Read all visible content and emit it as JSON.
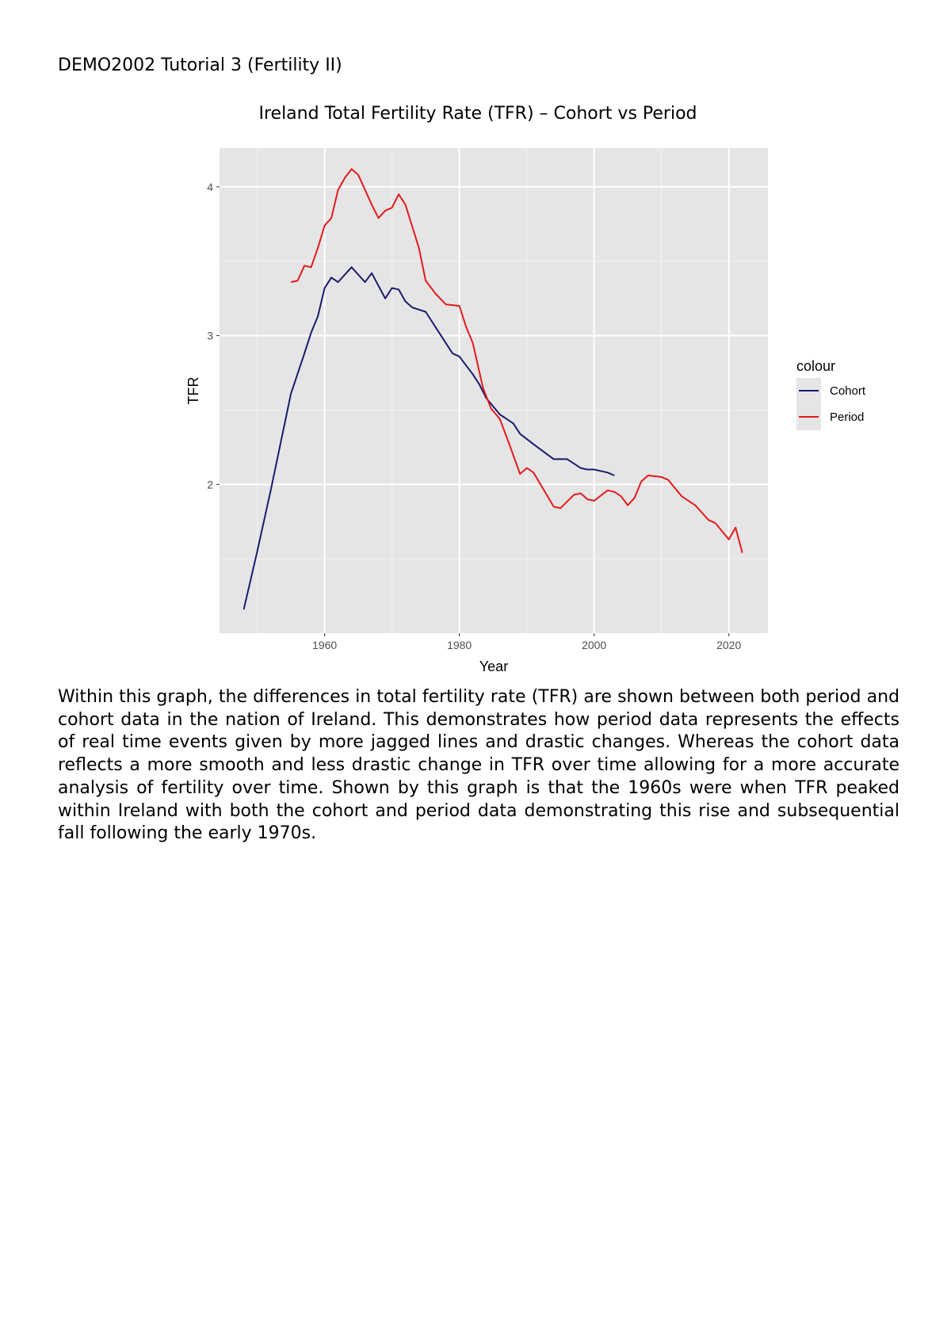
{
  "document": {
    "header": "DEMO2002 Tutorial 3 (Fertility II)",
    "paragraph": "Within this graph, the differences in total fertility rate (TFR) are shown between both period and cohort data in the nation of Ireland. This demonstrates how period data represents the effects of real time events given by more jagged lines and drastic changes. Whereas the cohort data reflects a more smooth and less drastic change in TFR over time allowing for a more accurate analysis of fertility over time. Shown by this graph is that the 1960s were when TFR peaked within Ireland with both the cohort and period data demonstrating this rise and subsequential fall following the early 1970s."
  },
  "chart_data": {
    "type": "line",
    "title": "Ireland Total Fertility Rate (TFR) – Cohort vs Period",
    "xlabel": "Year",
    "ylabel": "TFR",
    "xlim": [
      1944.4,
      2025.8
    ],
    "ylim": [
      1.0,
      4.26
    ],
    "x_ticks": [
      1960,
      1980,
      2000,
      2020
    ],
    "y_ticks": [
      2,
      3,
      4
    ],
    "grid": true,
    "panel_background": "#e5e5e5",
    "legend": {
      "title": "colour",
      "placement": "right"
    },
    "series": [
      {
        "name": "Cohort",
        "color": "#1a1a6e",
        "x": [
          1948,
          1950,
          1952,
          1955,
          1957,
          1958,
          1959,
          1960,
          1961,
          1962,
          1964,
          1966,
          1967,
          1969,
          1970,
          1971,
          1972,
          1973,
          1975,
          1977,
          1979,
          1980,
          1982,
          1983,
          1984,
          1986,
          1988,
          1989,
          1991,
          1994,
          1996,
          1998,
          1999,
          2000,
          2002,
          2003
        ],
        "y": [
          1.16,
          1.55,
          1.96,
          2.61,
          2.88,
          3.02,
          3.13,
          3.32,
          3.39,
          3.36,
          3.46,
          3.36,
          3.42,
          3.25,
          3.32,
          3.31,
          3.23,
          3.19,
          3.16,
          3.02,
          2.88,
          2.86,
          2.74,
          2.67,
          2.58,
          2.47,
          2.41,
          2.34,
          2.27,
          2.17,
          2.17,
          2.11,
          2.1,
          2.1,
          2.08,
          2.06
        ]
      },
      {
        "name": "Period",
        "color": "#e41a1c",
        "x": [
          1955,
          1956,
          1957,
          1958,
          1959,
          1960,
          1961,
          1962,
          1963,
          1964,
          1965,
          1967,
          1968,
          1969,
          1970,
          1971,
          1972,
          1974,
          1975,
          1976.5,
          1978,
          1980,
          1981,
          1982,
          1983.5,
          1984.7,
          1986,
          1987.5,
          1989,
          1990,
          1991,
          1994,
          1995,
          1997,
          1998,
          1999,
          2000,
          2002,
          2003,
          2004,
          2005,
          2006,
          2007,
          2008,
          2010,
          2011,
          2013,
          2015,
          2017,
          2018,
          2020,
          2021,
          2022
        ],
        "y": [
          3.36,
          3.37,
          3.47,
          3.46,
          3.59,
          3.74,
          3.79,
          3.98,
          4.06,
          4.12,
          4.08,
          3.88,
          3.79,
          3.84,
          3.86,
          3.95,
          3.88,
          3.59,
          3.37,
          3.28,
          3.21,
          3.2,
          3.06,
          2.95,
          2.65,
          2.51,
          2.44,
          2.26,
          2.07,
          2.11,
          2.08,
          1.85,
          1.84,
          1.93,
          1.94,
          1.9,
          1.89,
          1.96,
          1.95,
          1.92,
          1.86,
          1.91,
          2.02,
          2.06,
          2.05,
          2.03,
          1.92,
          1.86,
          1.76,
          1.74,
          1.63,
          1.71,
          1.54
        ]
      }
    ]
  }
}
